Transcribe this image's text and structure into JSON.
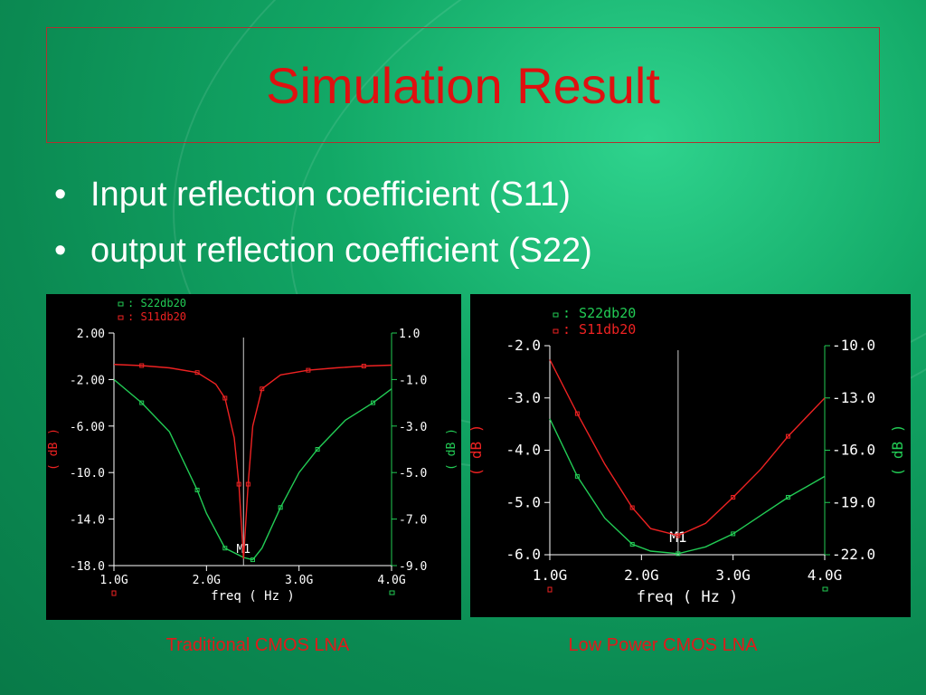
{
  "slide": {
    "title": "Simulation Result",
    "bullets": [
      "Input reflection coefficient (S11)",
      "output reflection coefficient (S22)"
    ]
  },
  "colors": {
    "s22": "#22cc55",
    "s11": "#ee2222",
    "axis_text": "#ffffff",
    "title": "#e01010"
  },
  "chart_data": [
    {
      "type": "line",
      "caption": "Traditional CMOS LNA",
      "xlabel": "freq ( Hz )",
      "xlim": [
        1.0,
        4.0
      ],
      "x_ticks": [
        "1.0G",
        "2.0G",
        "3.0G",
        "4.0G"
      ],
      "y_left_label": "( dB )",
      "y_left_lim": [
        -18.0,
        2.0
      ],
      "y_left_ticks": [
        "2.00",
        "-2.00",
        "-6.00",
        "-10.0",
        "-14.0",
        "-18.0"
      ],
      "y_right_label": "( dB )",
      "y_right_lim": [
        -9.0,
        1.0
      ],
      "y_right_ticks": [
        "1.0",
        "-1.0",
        "-3.0",
        "-5.0",
        "-7.0",
        "-9.0"
      ],
      "marker_label": "M1",
      "marker_x": 2.4,
      "series": [
        {
          "name": "S22db20",
          "color": "#22cc55",
          "axis": "left",
          "x": [
            1.0,
            1.3,
            1.6,
            1.9,
            2.0,
            2.2,
            2.4,
            2.5,
            2.6,
            2.8,
            3.0,
            3.2,
            3.5,
            3.8,
            4.0
          ],
          "y": [
            -2.0,
            -4.0,
            -6.5,
            -11.5,
            -13.5,
            -16.5,
            -17.3,
            -17.5,
            -16.5,
            -13.0,
            -10.0,
            -8.0,
            -5.5,
            -4.0,
            -2.8
          ]
        },
        {
          "name": "S11db20",
          "color": "#ee2222",
          "axis": "right",
          "x": [
            1.0,
            1.3,
            1.6,
            1.9,
            2.1,
            2.2,
            2.3,
            2.35,
            2.4,
            2.45,
            2.5,
            2.6,
            2.8,
            3.1,
            3.4,
            3.7,
            4.0
          ],
          "y": [
            -0.35,
            -0.4,
            -0.5,
            -0.7,
            -1.2,
            -1.8,
            -3.5,
            -5.5,
            -8.7,
            -5.5,
            -3.0,
            -1.4,
            -0.8,
            -0.6,
            -0.5,
            -0.42,
            -0.38
          ]
        }
      ]
    },
    {
      "type": "line",
      "caption": "Low Power CMOS LNA",
      "xlabel": "freq ( Hz )",
      "xlim": [
        1.0,
        4.0
      ],
      "x_ticks": [
        "1.0G",
        "2.0G",
        "3.0G",
        "4.0G"
      ],
      "y_left_label": "( dB )",
      "y_left_lim": [
        -6.0,
        -2.0
      ],
      "y_left_ticks": [
        "-2.0",
        "-3.0",
        "-4.0",
        "-5.0",
        "-6.0"
      ],
      "y_right_label": "( dB )",
      "y_right_lim": [
        -22.0,
        -10.0
      ],
      "y_right_ticks": [
        "-10.0",
        "-13.0",
        "-16.0",
        "-19.0",
        "-22.0"
      ],
      "marker_label": "M1",
      "marker_x": 2.4,
      "series": [
        {
          "name": "S22db20",
          "color": "#22cc55",
          "axis": "left",
          "x": [
            1.0,
            1.3,
            1.6,
            1.9,
            2.1,
            2.4,
            2.7,
            3.0,
            3.3,
            3.6,
            4.0
          ],
          "y": [
            -3.4,
            -4.5,
            -5.3,
            -5.8,
            -5.93,
            -5.98,
            -5.85,
            -5.6,
            -5.25,
            -4.9,
            -4.5
          ]
        },
        {
          "name": "S11db20",
          "color": "#ee2222",
          "axis": "right",
          "x": [
            1.0,
            1.3,
            1.6,
            1.9,
            2.1,
            2.4,
            2.7,
            3.0,
            3.3,
            3.6,
            4.0
          ],
          "y": [
            -10.8,
            -13.9,
            -16.8,
            -19.3,
            -20.5,
            -20.9,
            -20.2,
            -18.7,
            -17.1,
            -15.2,
            -13.0
          ]
        }
      ]
    }
  ]
}
